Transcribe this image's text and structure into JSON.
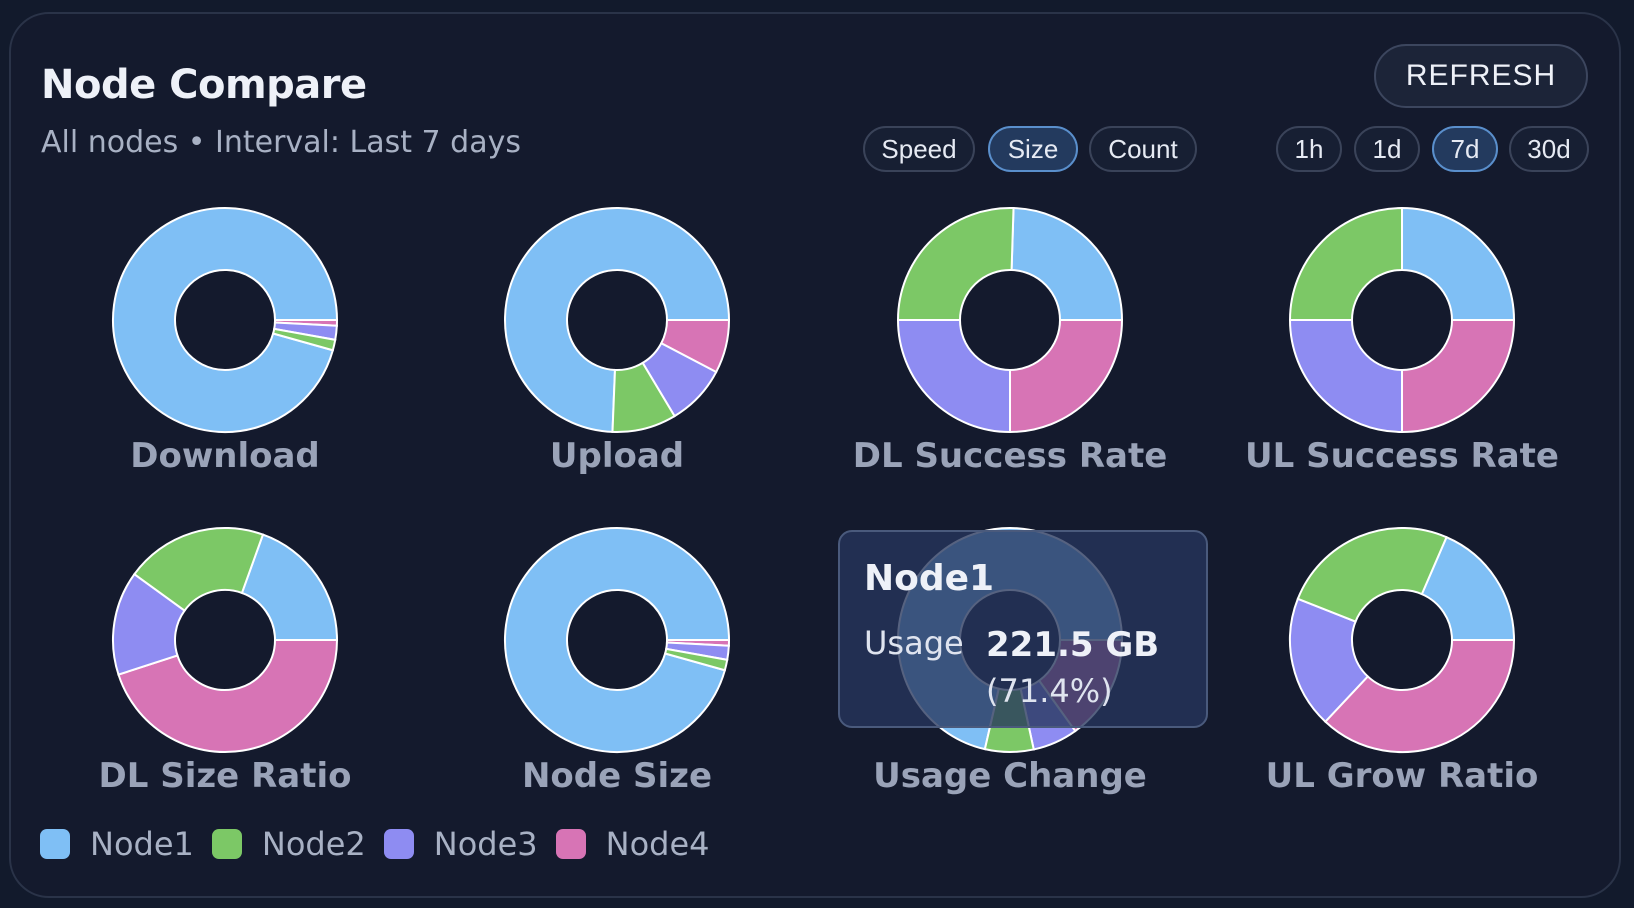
{
  "header": {
    "title": "Node Compare",
    "subtitle": "All nodes • Interval: Last 7 days",
    "refresh_label": "REFRESH"
  },
  "metric_filters": [
    {
      "label": "Speed",
      "active": false
    },
    {
      "label": "Size",
      "active": true
    },
    {
      "label": "Count",
      "active": false
    }
  ],
  "interval_filters": [
    {
      "label": "1h",
      "active": false
    },
    {
      "label": "1d",
      "active": false
    },
    {
      "label": "7d",
      "active": true
    },
    {
      "label": "30d",
      "active": false
    }
  ],
  "legend": [
    {
      "name": "Node1",
      "color": "#7fbff5"
    },
    {
      "name": "Node2",
      "color": "#7cc866"
    },
    {
      "name": "Node3",
      "color": "#8e8cf2"
    },
    {
      "name": "Node4",
      "color": "#d774b5"
    }
  ],
  "tooltip": {
    "title": "Node1",
    "label": "Usage",
    "value": "221.5 GB",
    "percent": "(71.4%)"
  },
  "chart_data": [
    {
      "type": "pie",
      "title": "Download",
      "categories": [
        "Node1",
        "Node2",
        "Node3",
        "Node4"
      ],
      "values": [
        94.5,
        1.5,
        2.0,
        0.8
      ]
    },
    {
      "type": "pie",
      "title": "Upload",
      "categories": [
        "Node1",
        "Node2",
        "Node3",
        "Node4"
      ],
      "values": [
        72.5,
        9.0,
        8.5,
        7.5
      ]
    },
    {
      "type": "pie",
      "title": "DL Success Rate",
      "categories": [
        "Node1",
        "Node2",
        "Node3",
        "Node4"
      ],
      "values": [
        24.5,
        25.5,
        25.0,
        25.0
      ]
    },
    {
      "type": "pie",
      "title": "UL Success Rate",
      "categories": [
        "Node1",
        "Node2",
        "Node3",
        "Node4"
      ],
      "values": [
        25.0,
        25.0,
        25.0,
        25.0
      ]
    },
    {
      "type": "pie",
      "title": "DL Size Ratio",
      "categories": [
        "Node1",
        "Node2",
        "Node3",
        "Node4"
      ],
      "values": [
        19.5,
        20.5,
        15.0,
        45.0
      ]
    },
    {
      "type": "pie",
      "title": "Node Size",
      "categories": [
        "Node1",
        "Node2",
        "Node3",
        "Node4"
      ],
      "values": [
        94.5,
        1.5,
        2.0,
        0.8
      ]
    },
    {
      "type": "pie",
      "title": "Usage Change",
      "categories": [
        "Node1",
        "Node2",
        "Node3",
        "Node4"
      ],
      "values": [
        71.4,
        7.0,
        6.5,
        15.1
      ]
    },
    {
      "type": "pie",
      "title": "UL Grow Ratio",
      "categories": [
        "Node1",
        "Node2",
        "Node3",
        "Node4"
      ],
      "values": [
        18.5,
        25.5,
        19.0,
        37.0
      ]
    }
  ]
}
